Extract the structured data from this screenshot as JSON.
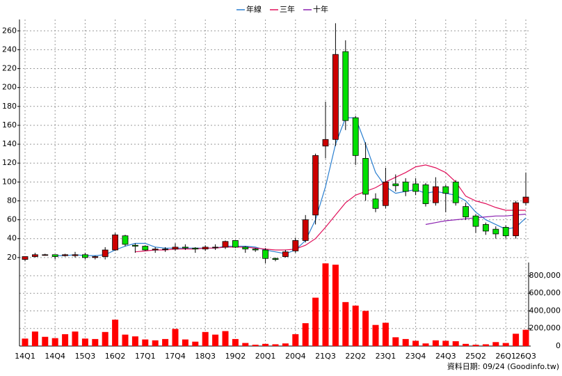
{
  "chart_data": {
    "type": "candlestick",
    "categories": [
      "14Q1",
      null,
      null,
      "14Q4",
      null,
      null,
      "15Q3",
      null,
      null,
      "16Q2",
      null,
      null,
      "17Q1",
      null,
      null,
      "17Q4",
      null,
      null,
      "18Q3",
      null,
      null,
      "19Q2",
      null,
      null,
      "20Q1",
      null,
      null,
      "20Q4",
      null,
      null,
      "21Q3",
      null,
      null,
      "22Q2",
      null,
      null,
      "23Q1",
      null,
      null,
      "23Q4",
      null,
      null,
      "24Q3",
      null,
      null,
      "25Q2",
      null,
      null,
      "26Q1",
      null,
      "26Q3"
    ],
    "open": [
      18,
      21,
      23,
      23,
      22,
      22,
      23,
      20,
      21,
      28,
      43,
      33,
      32,
      28,
      29,
      29,
      31,
      30,
      29,
      31,
      31,
      38,
      31,
      29,
      28,
      19,
      21,
      27,
      38,
      65,
      138,
      145,
      238,
      168,
      125,
      82,
      75,
      98,
      100,
      98,
      97,
      78,
      95,
      100,
      74,
      64,
      55,
      50,
      52,
      43,
      78
    ],
    "high": [
      21,
      25,
      24,
      23,
      24,
      26,
      25,
      22,
      31,
      46,
      44,
      35,
      33,
      31,
      31,
      35,
      34,
      31,
      33,
      34,
      38,
      38,
      32,
      30,
      30,
      20,
      28,
      41,
      65,
      130,
      185,
      268,
      250,
      170,
      142,
      88,
      115,
      108,
      104,
      104,
      99,
      105,
      97,
      102,
      78,
      66,
      57,
      53,
      54,
      80,
      110
    ],
    "low": [
      16,
      20,
      22,
      18,
      21,
      20,
      18,
      18,
      18,
      27,
      32,
      25,
      27,
      25,
      26,
      27,
      28,
      25,
      27,
      28,
      29,
      30,
      25,
      26,
      14,
      16,
      20,
      25,
      36,
      55,
      125,
      138,
      155,
      118,
      80,
      68,
      72,
      90,
      85,
      86,
      74,
      75,
      68,
      75,
      60,
      46,
      44,
      40,
      40,
      40,
      75
    ],
    "close": [
      21,
      23,
      23,
      21,
      23,
      23,
      20,
      21,
      28,
      44,
      34,
      32,
      28,
      29,
      29,
      31,
      30,
      29,
      31,
      31,
      37,
      31,
      29,
      28,
      19,
      18,
      26,
      38,
      60,
      128,
      145,
      235,
      165,
      128,
      87,
      72,
      100,
      96,
      90,
      90,
      77,
      95,
      88,
      78,
      63,
      53,
      48,
      45,
      43,
      78,
      84
    ],
    "up_color": "#cc0000",
    "down_color": "#00e000",
    "series": [
      {
        "name": "年線",
        "color": "#2a7fd0",
        "values": [
          null,
          null,
          null,
          22,
          22,
          23,
          22,
          22,
          23,
          28,
          32,
          35,
          35,
          31,
          30,
          30,
          30,
          30,
          30,
          30,
          32,
          32,
          32,
          31,
          28,
          26,
          24,
          28,
          38,
          60,
          95,
          140,
          168,
          168,
          140,
          110,
          95,
          88,
          90,
          92,
          88,
          90,
          88,
          86,
          80,
          68,
          60,
          55,
          50,
          52,
          62
        ]
      },
      {
        "name": "三年",
        "color": "#e0105a",
        "values": [
          null,
          null,
          null,
          null,
          null,
          null,
          null,
          null,
          null,
          null,
          null,
          26,
          27,
          28,
          28,
          29,
          29,
          29,
          30,
          30,
          31,
          31,
          31,
          30,
          29,
          28,
          28,
          29,
          33,
          40,
          52,
          65,
          78,
          86,
          90,
          94,
          100,
          105,
          110,
          116,
          118,
          115,
          110,
          100,
          85,
          80,
          77,
          73,
          70,
          70,
          70
        ]
      },
      {
        "name": "十年",
        "color": "#8a20b0",
        "values": [
          null,
          null,
          null,
          null,
          null,
          null,
          null,
          null,
          null,
          null,
          null,
          null,
          null,
          null,
          null,
          null,
          null,
          null,
          null,
          null,
          null,
          null,
          null,
          null,
          null,
          null,
          null,
          null,
          null,
          null,
          null,
          null,
          null,
          null,
          null,
          null,
          null,
          null,
          null,
          null,
          55,
          57,
          59,
          60,
          61,
          62,
          63,
          64,
          64,
          65,
          66
        ]
      }
    ],
    "ylim": [
      14,
      272
    ],
    "yticks": [
      20,
      40,
      60,
      80,
      100,
      120,
      140,
      160,
      180,
      200,
      220,
      240,
      260
    ],
    "grid": true,
    "volume": {
      "color": "#ff0000",
      "values": [
        85000,
        165000,
        105000,
        90000,
        135000,
        165000,
        85000,
        80000,
        160000,
        300000,
        130000,
        110000,
        75000,
        65000,
        80000,
        195000,
        75000,
        50000,
        160000,
        130000,
        170000,
        80000,
        35000,
        15000,
        25000,
        20000,
        30000,
        135000,
        260000,
        550000,
        940000,
        925000,
        500000,
        460000,
        400000,
        240000,
        265000,
        100000,
        80000,
        60000,
        30000,
        65000,
        60000,
        55000,
        25000,
        15000,
        20000,
        45000,
        35000,
        140000,
        185000
      ],
      "ylim": [
        0,
        950000
      ],
      "yticks": [
        0,
        {
          "value": 200000,
          "label": "200,000"
        },
        {
          "value": 400000,
          "label": "400,000"
        },
        {
          "value": 600000,
          "label": "600,000"
        },
        {
          "value": 800000,
          "label": "800,000"
        }
      ]
    },
    "footer": "資料日期: 09/24  (Goodinfo.tw)"
  }
}
